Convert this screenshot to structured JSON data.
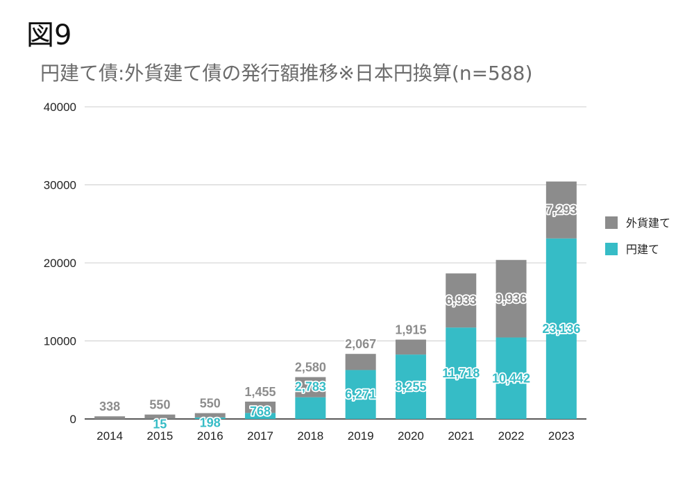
{
  "figure_label": "図9",
  "chart_data": {
    "type": "bar",
    "stacked": true,
    "title": "円建て債:外貨建て債の発行額推移※日本円換算(n=588)",
    "categories": [
      "2014",
      "2015",
      "2016",
      "2017",
      "2018",
      "2019",
      "2020",
      "2021",
      "2022",
      "2023"
    ],
    "series": [
      {
        "name": "円建て",
        "color": "#36bcc6",
        "values": [
          0,
          15,
          198,
          768,
          2783,
          6271,
          8255,
          11718,
          10442,
          23136
        ],
        "labels": [
          "",
          "15",
          "198",
          "768",
          "2,783",
          "6,271",
          "8,255",
          "11,718",
          "10,442",
          "23,136"
        ]
      },
      {
        "name": "外貨建て",
        "color": "#8c8c8c",
        "values": [
          338,
          550,
          550,
          1455,
          2580,
          2067,
          1915,
          6933,
          9936,
          7293
        ],
        "labels": [
          "338",
          "550",
          "550",
          "1,455",
          "2,580",
          "2,067",
          "1,915",
          "6,933",
          "9,936",
          "7,293"
        ]
      }
    ],
    "ylim": [
      0,
      40000
    ],
    "yticks": [
      "0",
      "10000",
      "20000",
      "30000",
      "40000"
    ],
    "grid": true,
    "legend": "right"
  }
}
